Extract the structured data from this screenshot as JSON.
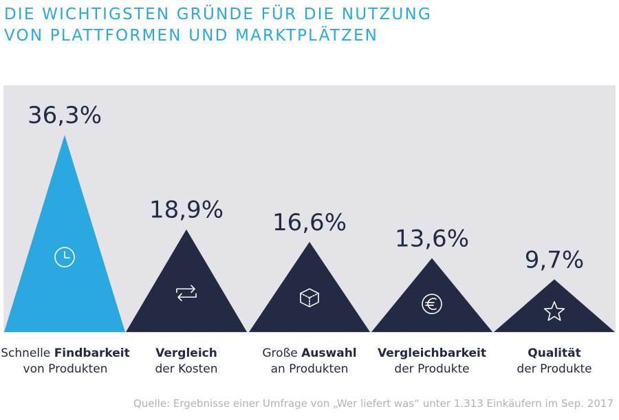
{
  "title": {
    "line1": "Die wichtigsten Gründe für die Nutzung",
    "line2": "von Plattformen und Marktplätzen"
  },
  "colors": {
    "background_panel": "#e4e4e8",
    "highlight": "#29a9e0",
    "primary": "#232a44",
    "source_text": "#b3b3b3"
  },
  "chart_data": {
    "type": "bar",
    "categories": [
      "Schnelle Findbarkeit von Produkten",
      "Vergleich der Kosten",
      "Große Auswahl an Produkten",
      "Vergleichbarkeit der Produkte",
      "Qualität der Produkte"
    ],
    "values": [
      36.3,
      18.9,
      16.6,
      13.6,
      9.7
    ],
    "unit": "%",
    "value_labels": [
      "36,3%",
      "18,9%",
      "16,6%",
      "13,6%",
      "9,7%"
    ],
    "icons": [
      "clock-icon",
      "swap-arrows-icon",
      "cube-icon",
      "euro-icon",
      "star-icon"
    ],
    "highlight_index": 0,
    "grid": false,
    "legend": "none"
  },
  "labels": [
    {
      "pre": "Schnelle ",
      "bold": "Findbarkeit",
      "line2": "von Produkten"
    },
    {
      "pre": "",
      "bold": "Vergleich",
      "line2": "der Kosten"
    },
    {
      "pre": "Große ",
      "bold": "Auswahl",
      "line2": "an Produkten"
    },
    {
      "pre": "",
      "bold": "Vergleichbarkeit",
      "line2": "der Produkte"
    },
    {
      "pre": "",
      "bold": "Qualität",
      "line2": "der Produkte"
    }
  ],
  "source": "Quelle: Ergebnisse einer Umfrage von „Wer liefert was“ unter 1.313 Einkäufern im Sep. 2017"
}
